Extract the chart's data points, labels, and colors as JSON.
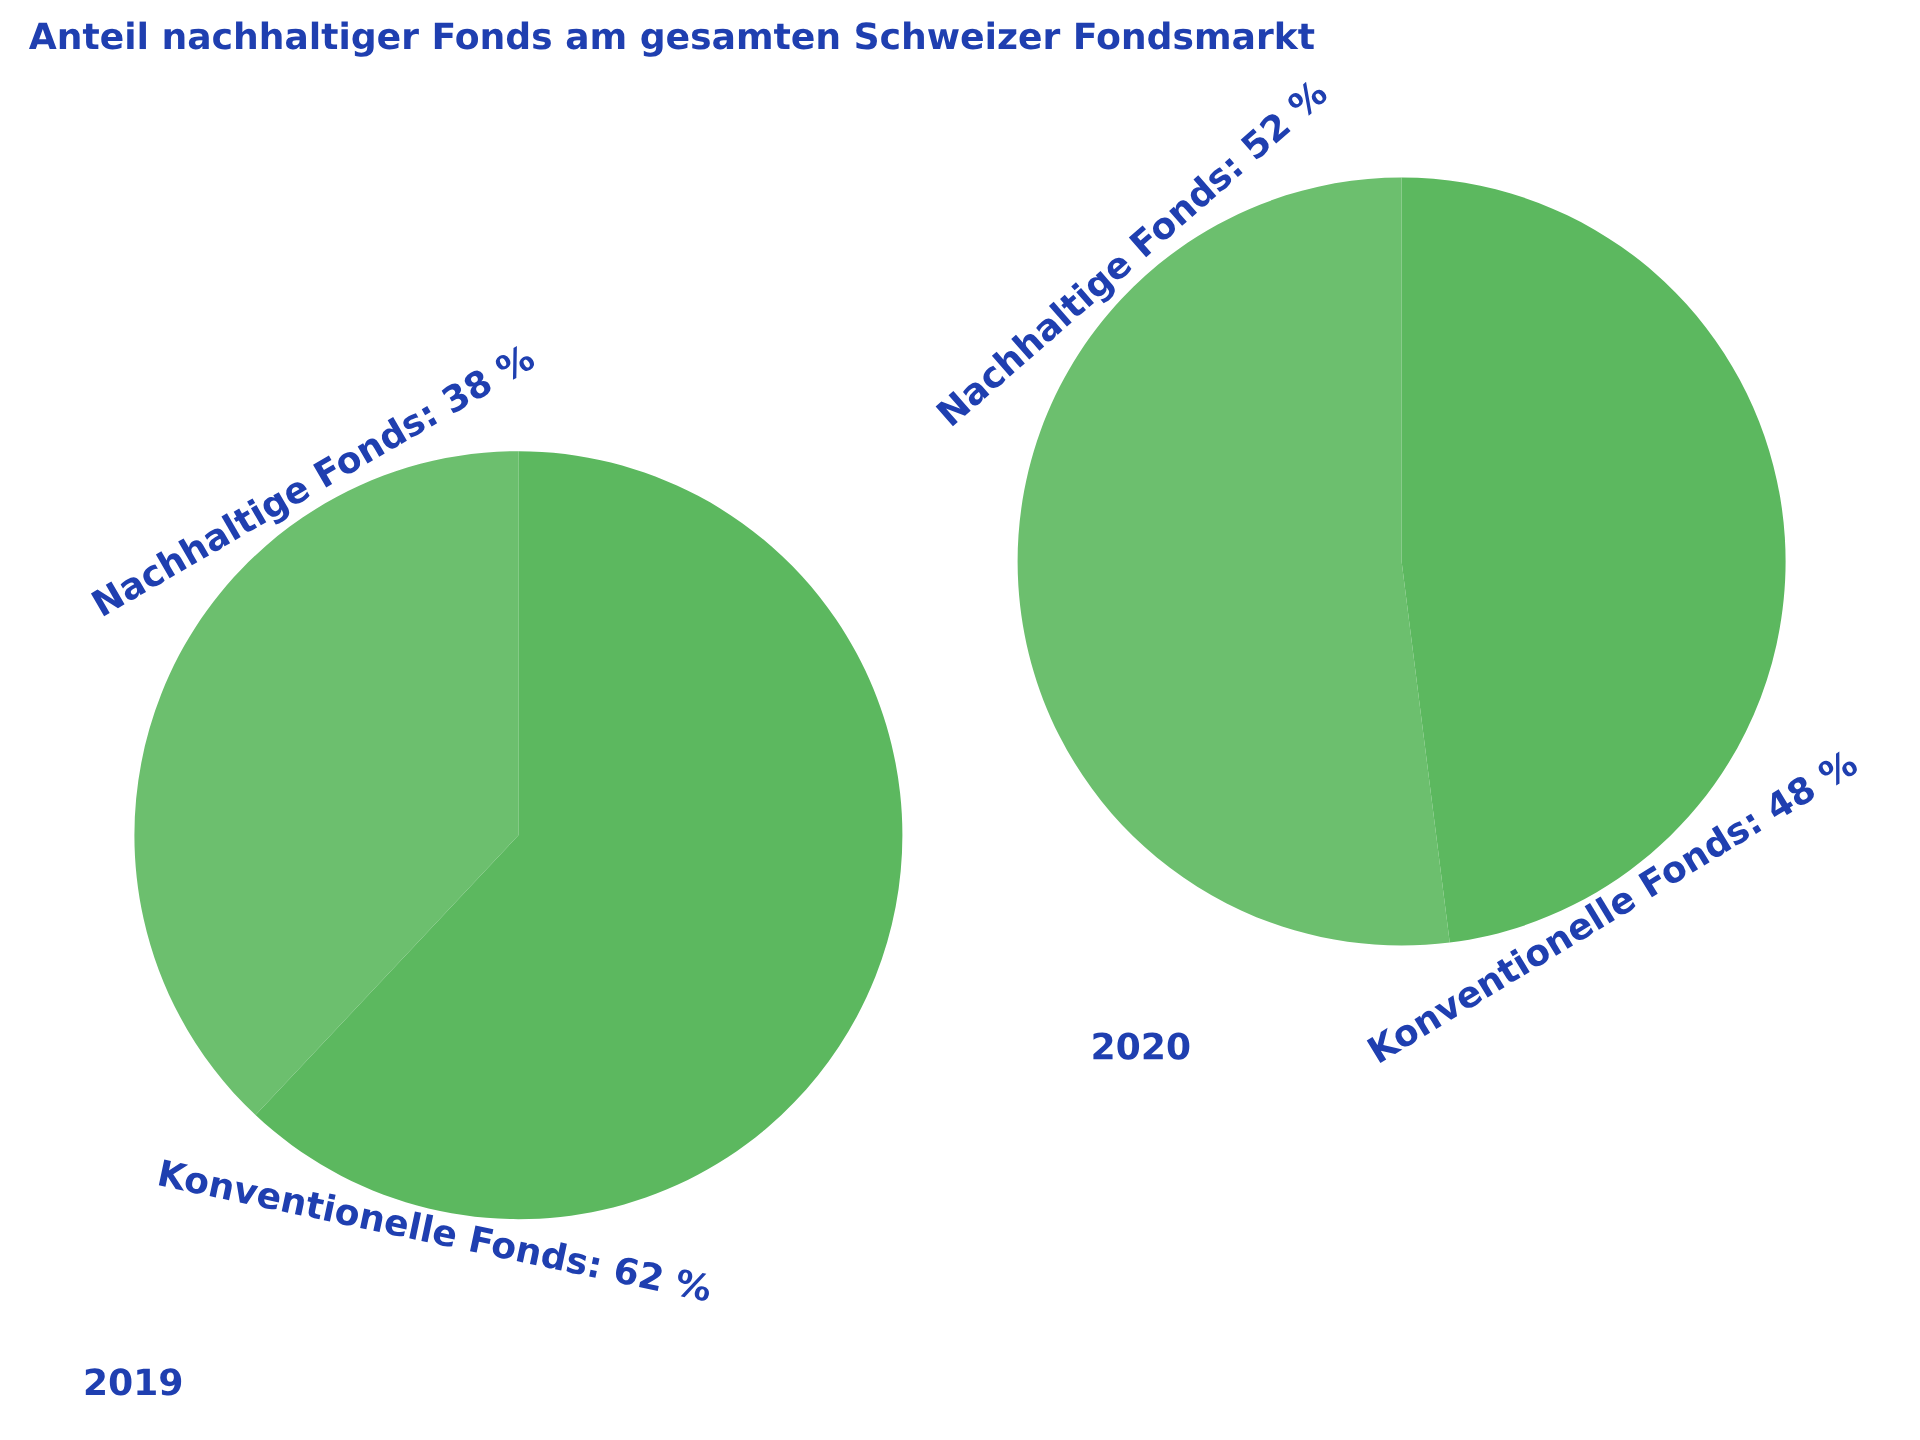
{
  "chart_data": [
    {
      "type": "pie",
      "title": "2019",
      "annotations": [
        "Anteil nachhaltiger Fonds am gesamten Schweizer Fondsmarkt"
      ],
      "categories": [
        "Nachhaltige Fonds: 38 %",
        "Konventionelle Fonds: 62 %"
      ],
      "values": [
        38,
        62
      ],
      "colors": [
        "#6cbf6e",
        "#5cb85f"
      ]
    },
    {
      "type": "pie",
      "title": "2020",
      "categories": [
        "Nachhaltige Fonds: 52 %",
        "Konventionelle Fonds: 48 %"
      ],
      "values": [
        52,
        48
      ],
      "colors": [
        "#6cbf6e",
        "#5cb85f"
      ]
    }
  ]
}
